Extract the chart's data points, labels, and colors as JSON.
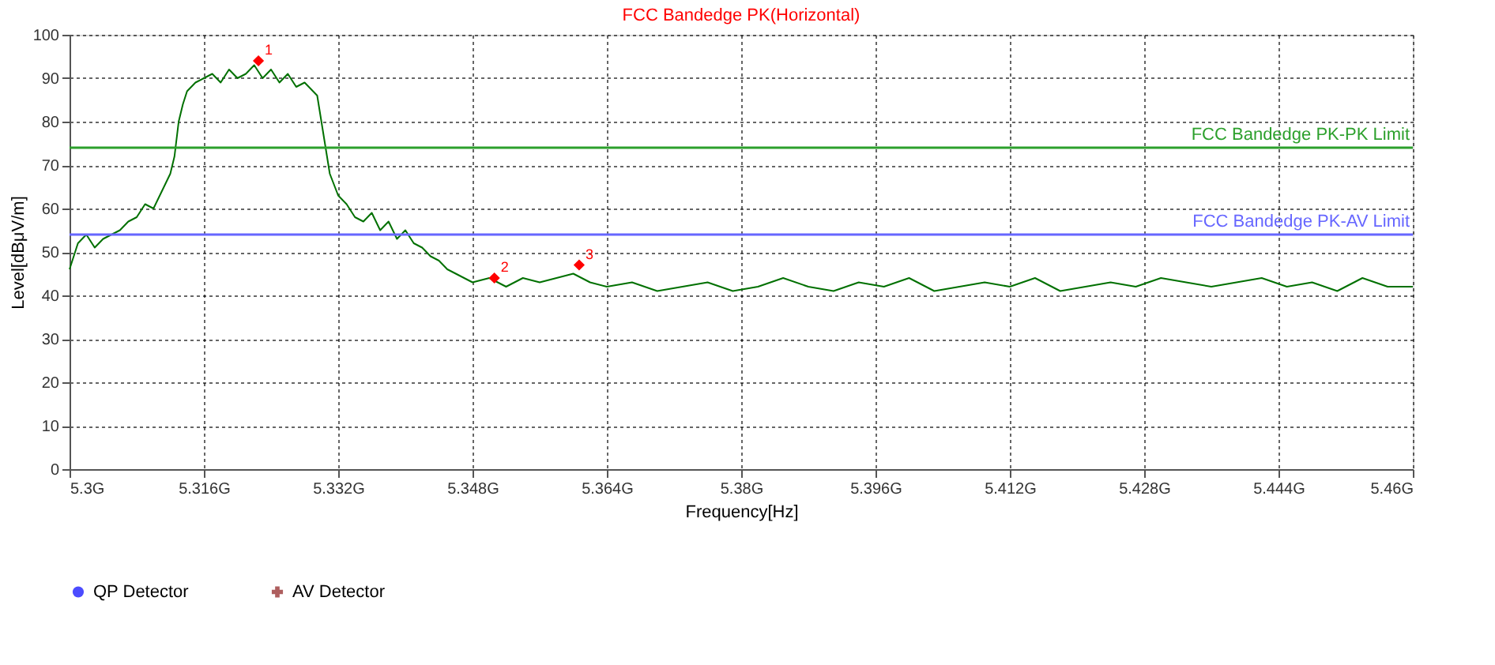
{
  "chart_data": {
    "type": "line",
    "title": "FCC Bandedge PK(Horizontal)",
    "xlabel": "Frequency[Hz]",
    "ylabel": "Level[dBμV/m]",
    "xlim": [
      5.3,
      5.46
    ],
    "xticks": [
      {
        "value": 5.3,
        "label": "5.3G"
      },
      {
        "value": 5.316,
        "label": "5.316G"
      },
      {
        "value": 5.332,
        "label": "5.332G"
      },
      {
        "value": 5.348,
        "label": "5.348G"
      },
      {
        "value": 5.364,
        "label": "5.364G"
      },
      {
        "value": 5.38,
        "label": "5.38G"
      },
      {
        "value": 5.396,
        "label": "5.396G"
      },
      {
        "value": 5.412,
        "label": "5.412G"
      },
      {
        "value": 5.428,
        "label": "5.428G"
      },
      {
        "value": 5.444,
        "label": "5.444G"
      },
      {
        "value": 5.46,
        "label": "5.46G"
      }
    ],
    "ylim": [
      0,
      100
    ],
    "yticks": [
      0,
      10,
      20,
      30,
      40,
      50,
      60,
      70,
      80,
      90,
      100
    ],
    "grid": true,
    "legend": "bottom",
    "line_style": "solid",
    "series": [
      {
        "color": "#007000",
        "marker": "none",
        "x": [
          5.3,
          5.301,
          5.302,
          5.303,
          5.304,
          5.305,
          5.306,
          5.307,
          5.308,
          5.309,
          5.31,
          5.311,
          5.312,
          5.3125,
          5.313,
          5.3135,
          5.314,
          5.315,
          5.316,
          5.317,
          5.318,
          5.319,
          5.32,
          5.321,
          5.322,
          5.323,
          5.324,
          5.325,
          5.326,
          5.327,
          5.328,
          5.329,
          5.3295,
          5.33,
          5.3305,
          5.331,
          5.332,
          5.333,
          5.334,
          5.335,
          5.336,
          5.337,
          5.338,
          5.339,
          5.34,
          5.341,
          5.342,
          5.343,
          5.344,
          5.345,
          5.346,
          5.347,
          5.348,
          5.35,
          5.352,
          5.354,
          5.356,
          5.358,
          5.36,
          5.362,
          5.364,
          5.367,
          5.37,
          5.373,
          5.376,
          5.379,
          5.382,
          5.385,
          5.388,
          5.391,
          5.394,
          5.397,
          5.4,
          5.403,
          5.406,
          5.409,
          5.412,
          5.415,
          5.418,
          5.421,
          5.424,
          5.427,
          5.43,
          5.433,
          5.436,
          5.439,
          5.442,
          5.445,
          5.448,
          5.451,
          5.454,
          5.457,
          5.46
        ],
        "values": [
          46,
          52,
          54,
          51,
          53,
          54,
          55,
          57,
          58,
          61,
          60,
          64,
          68,
          72,
          80,
          84,
          87,
          89,
          90,
          91,
          89,
          92,
          90,
          91,
          93,
          90,
          92,
          89,
          91,
          88,
          89,
          87,
          86,
          80,
          74,
          68,
          63,
          61,
          58,
          57,
          59,
          55,
          57,
          53,
          55,
          52,
          51,
          49,
          48,
          46,
          45,
          44,
          43,
          44,
          42,
          44,
          43,
          44,
          45,
          43,
          42,
          43,
          41,
          42,
          43,
          41,
          42,
          44,
          42,
          41,
          43,
          42,
          44,
          41,
          42,
          43,
          42,
          44,
          41,
          42,
          43,
          42,
          44,
          43,
          42,
          43,
          44,
          42,
          43,
          41,
          44,
          42,
          42
        ]
      },
      {
        "type": "scatter",
        "color": "#ff0000",
        "marker": "diamond",
        "x": [
          5.3225,
          5.3506,
          5.3607
        ],
        "values": [
          94,
          44,
          47
        ]
      },
      {
        "name": "QP Detector",
        "type": "scatter",
        "color": "#0000ff",
        "marker": "circle"
      },
      {
        "name": "AV Detector",
        "type": "scatter",
        "color": "#8b1a1a",
        "marker": "cross"
      }
    ],
    "ref_lines": [
      {
        "axis": "y",
        "value": 74,
        "label": "FCC Bandedge PK-PK Limit",
        "color": "#2ca02c"
      },
      {
        "axis": "y",
        "value": 54,
        "label": "FCC Bandedge PK-AV Limit",
        "color": "#6666ff"
      }
    ],
    "annotations": [
      {
        "text": "1",
        "x": 5.3225,
        "y": 94
      },
      {
        "text": "2",
        "x": 5.3506,
        "y": 44
      },
      {
        "text": "3",
        "x": 5.3607,
        "y": 47
      }
    ]
  }
}
